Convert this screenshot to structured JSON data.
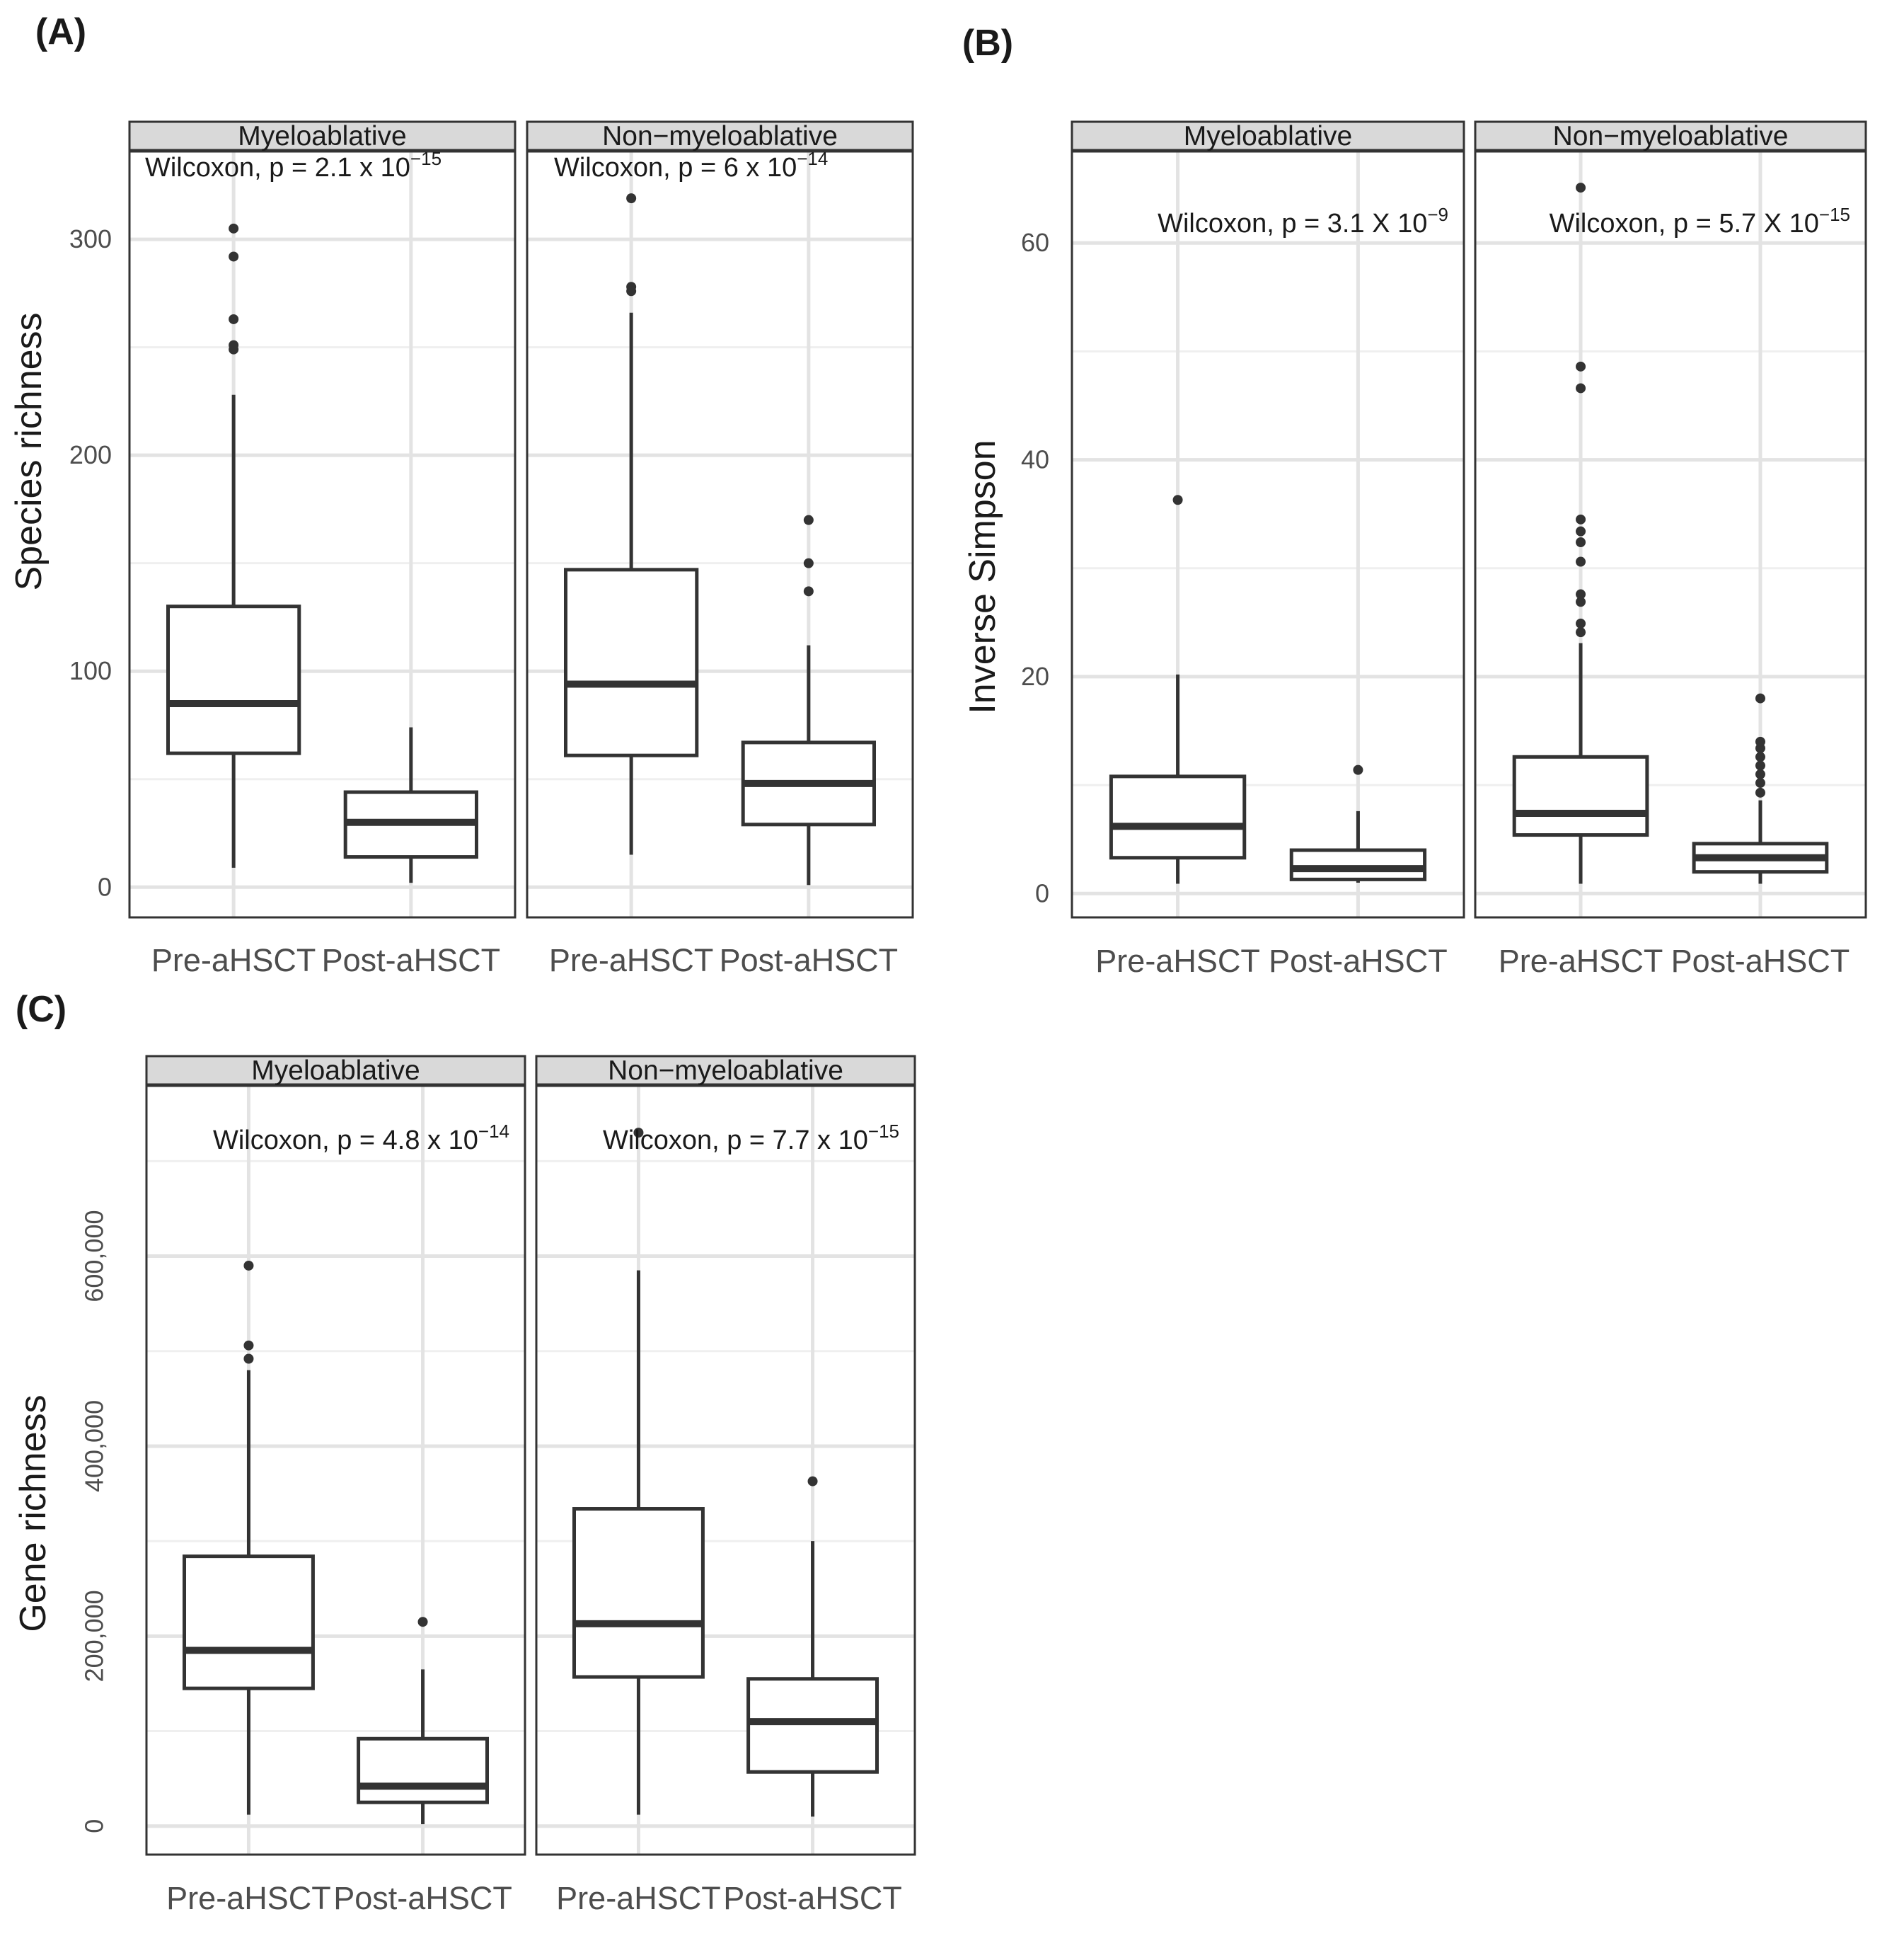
{
  "chart_data": [
    {
      "type": "box",
      "panel_label": "(A)",
      "ylabel": "Species richness",
      "ylim": [
        -14,
        341
      ],
      "yticks": [
        0,
        100,
        200,
        300
      ],
      "ytick_labels": [
        "0",
        "100",
        "200",
        "300"
      ],
      "grid": true,
      "categories": [
        "Pre-aHSCT",
        "Post-aHSCT"
      ],
      "facets": [
        {
          "name": "Myeloablative",
          "annotation": {
            "text": "Wilcoxon, p = 2.1 x 10",
            "exponent": "−15",
            "position": "top-left"
          },
          "boxes": [
            {
              "category": "Pre-aHSCT",
              "q1": 62,
              "median": 85,
              "q3": 130,
              "whisker_low": 9,
              "whisker_high": 228,
              "outliers": [
                249,
                251,
                263,
                292,
                305
              ]
            },
            {
              "category": "Post-aHSCT",
              "q1": 14,
              "median": 30,
              "q3": 44,
              "whisker_low": 2,
              "whisker_high": 74,
              "outliers": []
            }
          ]
        },
        {
          "name": "Non−myeloablative",
          "annotation": {
            "text": "Wilcoxon, p = 6 x 10",
            "exponent": "−14",
            "position": "top-left"
          },
          "boxes": [
            {
              "category": "Pre-aHSCT",
              "q1": 61,
              "median": 94,
              "q3": 147,
              "whisker_low": 15,
              "whisker_high": 266,
              "outliers": [
                276,
                278,
                319
              ]
            },
            {
              "category": "Post-aHSCT",
              "q1": 29,
              "median": 48,
              "q3": 67,
              "whisker_low": 1,
              "whisker_high": 112,
              "outliers": [
                137,
                150,
                170
              ]
            }
          ]
        }
      ]
    },
    {
      "type": "box",
      "panel_label": "(B)",
      "ylabel": "Inverse Simpson",
      "ylim": [
        -2.2,
        68.5
      ],
      "yticks": [
        0,
        20,
        40,
        60
      ],
      "ytick_labels": [
        "0",
        "20",
        "40",
        "60"
      ],
      "grid": true,
      "categories": [
        "Pre-aHSCT",
        "Post-aHSCT"
      ],
      "facets": [
        {
          "name": "Myeloablative",
          "annotation": {
            "text": "Wilcoxon, p = 3.1 X 10",
            "exponent": "−9",
            "position": "top-right"
          },
          "boxes": [
            {
              "category": "Pre-aHSCT",
              "q1": 3.3,
              "median": 6.2,
              "q3": 10.8,
              "whisker_low": 0.9,
              "whisker_high": 20.2,
              "outliers": [
                36.3
              ]
            },
            {
              "category": "Post-aHSCT",
              "q1": 1.3,
              "median": 2.3,
              "q3": 4.0,
              "whisker_low": 1.0,
              "whisker_high": 7.6,
              "outliers": [
                11.4
              ]
            }
          ]
        },
        {
          "name": "Non−myeloablative",
          "annotation": {
            "text": "Wilcoxon, p = 5.7 X 10",
            "exponent": "−15",
            "position": "top-right"
          },
          "boxes": [
            {
              "category": "Pre-aHSCT",
              "q1": 5.4,
              "median": 7.4,
              "q3": 12.6,
              "whisker_low": 0.9,
              "whisker_high": 23.1,
              "outliers": [
                24.1,
                24.9,
                26.9,
                27.6,
                30.6,
                32.4,
                33.4,
                34.5,
                46.6,
                48.6,
                65.1
              ]
            },
            {
              "category": "Post-aHSCT",
              "q1": 2.0,
              "median": 3.3,
              "q3": 4.6,
              "whisker_low": 0.9,
              "whisker_high": 8.6,
              "outliers": [
                9.3,
                10.2,
                11.0,
                11.8,
                12.6,
                13.4,
                14.0,
                18.0
              ]
            }
          ]
        }
      ]
    },
    {
      "type": "box",
      "panel_label": "(C)",
      "ylabel": "Gene richness",
      "ylim": [
        -30000,
        780000
      ],
      "yticks": [
        0,
        200000,
        400000,
        600000
      ],
      "ytick_labels": [
        "0",
        "200,000",
        "400,000",
        "600,000"
      ],
      "grid": true,
      "categories": [
        "Pre-aHSCT",
        "Post-aHSCT"
      ],
      "facets": [
        {
          "name": "Myeloablative",
          "annotation": {
            "text": "Wilcoxon, p = 4.8 x 10",
            "exponent": "−14",
            "position": "top-right"
          },
          "boxes": [
            {
              "category": "Pre-aHSCT",
              "q1": 145000,
              "median": 185000,
              "q3": 284000,
              "whisker_low": 12000,
              "whisker_high": 480000,
              "outliers": [
                492000,
                506000,
                590000
              ]
            },
            {
              "category": "Post-aHSCT",
              "q1": 25000,
              "median": 42000,
              "q3": 92000,
              "whisker_low": 2000,
              "whisker_high": 165000,
              "outliers": [
                215000
              ]
            }
          ]
        },
        {
          "name": "Non−myeloablative",
          "annotation": {
            "text": "Wilcoxon, p = 7.7 x 10",
            "exponent": "−15",
            "position": "top-right"
          },
          "boxes": [
            {
              "category": "Pre-aHSCT",
              "q1": 157000,
              "median": 213000,
              "q3": 334000,
              "whisker_low": 12000,
              "whisker_high": 585000,
              "outliers": [
                730000
              ]
            },
            {
              "category": "Post-aHSCT",
              "q1": 57000,
              "median": 110000,
              "q3": 155000,
              "whisker_low": 10000,
              "whisker_high": 300000,
              "outliers": [
                363000
              ]
            }
          ]
        }
      ]
    }
  ],
  "colors": {
    "box_line": "#333333",
    "grid_major": "#e3e3e3",
    "grid_minor": "#efefef",
    "strip_fill": "#d9d9d9",
    "strip_border": "#333333",
    "outlier": "#333333",
    "axis_text": "#4d4d4d",
    "title_text": "#1a1a1a"
  }
}
